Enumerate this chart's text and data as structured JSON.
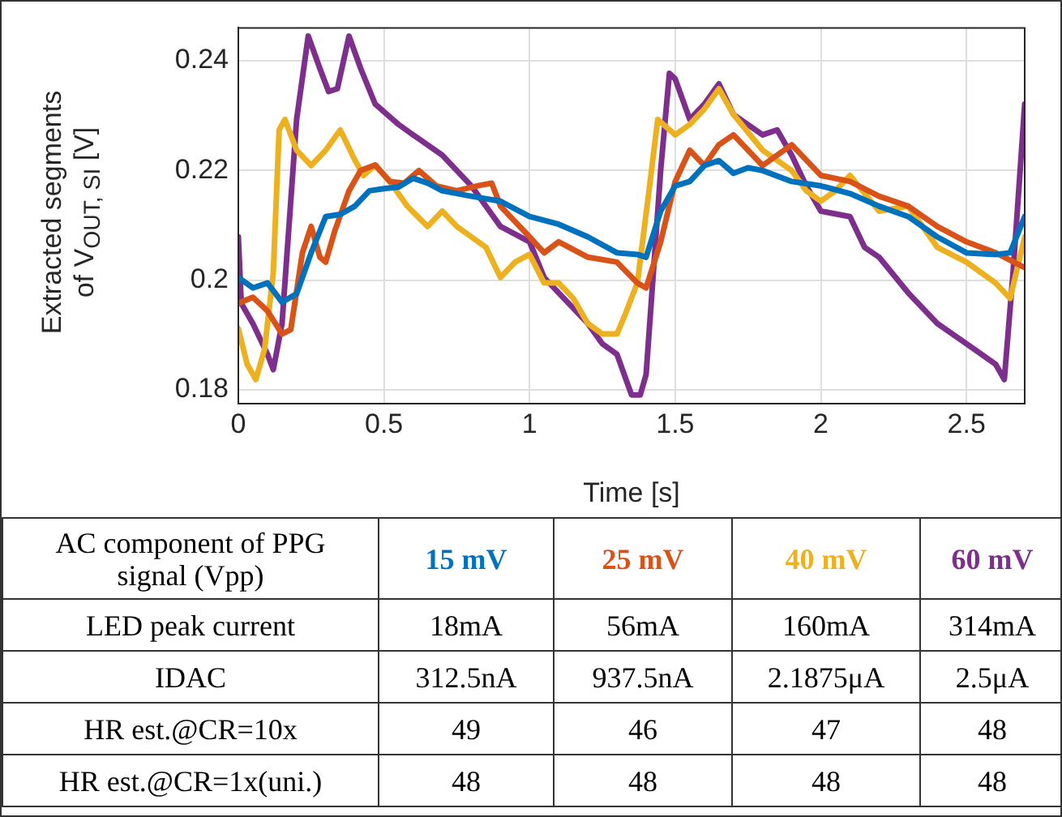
{
  "chart_data": {
    "type": "line",
    "xlabel": "Time [s]",
    "ylabel": "Extracted segments of V$_{OUT, SI}$ [V]",
    "xlim": [
      0,
      2.7
    ],
    "ylim": [
      0.1775,
      0.246
    ],
    "xticks": [
      0,
      0.5,
      1,
      1.5,
      2,
      2.5
    ],
    "yticks": [
      {
        "value": 0.18,
        "label": "0.18"
      },
      {
        "value": 0.2,
        "label": "0.2"
      },
      {
        "value": 0.22,
        "label": "0.22"
      },
      {
        "value": 0.24,
        "label": "0.24"
      }
    ],
    "grid": true,
    "legend": "bottom",
    "marker": "none",
    "line_style": "solid",
    "series": [
      {
        "name": "15 mV",
        "color": "#0072bd",
        "x": [
          0,
          0.05,
          0.1,
          0.15,
          0.2,
          0.25,
          0.3,
          0.35,
          0.4,
          0.45,
          0.5,
          0.55,
          0.6,
          0.65,
          0.7,
          0.8,
          0.9,
          1.0,
          1.1,
          1.2,
          1.3,
          1.37,
          1.4,
          1.45,
          1.5,
          1.55,
          1.6,
          1.65,
          1.7,
          1.75,
          1.8,
          1.9,
          2.0,
          2.1,
          2.2,
          2.3,
          2.4,
          2.5,
          2.6,
          2.65,
          2.7
        ],
        "values": [
          0.2005,
          0.1986,
          0.1995,
          0.196,
          0.1975,
          0.205,
          0.2116,
          0.212,
          0.2135,
          0.2163,
          0.2167,
          0.217,
          0.2186,
          0.2177,
          0.2163,
          0.2153,
          0.2144,
          0.2116,
          0.2102,
          0.2079,
          0.205,
          0.2047,
          0.2042,
          0.2126,
          0.2172,
          0.218,
          0.2209,
          0.2218,
          0.2195,
          0.2205,
          0.22,
          0.218,
          0.2172,
          0.2158,
          0.2135,
          0.2116,
          0.2079,
          0.205,
          0.2047,
          0.205,
          0.2116
        ]
      },
      {
        "name": "25 mV",
        "color": "#d95319",
        "x": [
          0,
          0.05,
          0.1,
          0.15,
          0.18,
          0.22,
          0.25,
          0.28,
          0.3,
          0.33,
          0.38,
          0.42,
          0.47,
          0.52,
          0.57,
          0.62,
          0.68,
          0.75,
          0.82,
          0.87,
          0.9,
          0.95,
          1.0,
          1.05,
          1.1,
          1.2,
          1.3,
          1.37,
          1.4,
          1.45,
          1.5,
          1.55,
          1.6,
          1.65,
          1.7,
          1.8,
          1.9,
          2.0,
          2.1,
          2.2,
          2.3,
          2.4,
          2.5,
          2.6,
          2.7
        ],
        "values": [
          0.1958,
          0.1969,
          0.1944,
          0.1902,
          0.191,
          0.205,
          0.2098,
          0.2042,
          0.2033,
          0.2088,
          0.2163,
          0.22,
          0.221,
          0.218,
          0.2177,
          0.22,
          0.2172,
          0.2163,
          0.2172,
          0.2177,
          0.2135,
          0.2107,
          0.2079,
          0.205,
          0.207,
          0.2042,
          0.2033,
          0.1995,
          0.1986,
          0.207,
          0.218,
          0.2237,
          0.2209,
          0.2247,
          0.2265,
          0.2209,
          0.2247,
          0.2191,
          0.218,
          0.2153,
          0.2135,
          0.2098,
          0.207,
          0.205,
          0.2023
        ]
      },
      {
        "name": "40 mV",
        "color": "#edb120",
        "x": [
          0,
          0.03,
          0.06,
          0.09,
          0.12,
          0.14,
          0.16,
          0.2,
          0.25,
          0.3,
          0.35,
          0.4,
          0.43,
          0.47,
          0.52,
          0.58,
          0.65,
          0.7,
          0.75,
          0.8,
          0.85,
          0.9,
          0.95,
          1.0,
          1.05,
          1.1,
          1.15,
          1.2,
          1.25,
          1.3,
          1.33,
          1.37,
          1.41,
          1.44,
          1.5,
          1.55,
          1.6,
          1.65,
          1.7,
          1.8,
          1.9,
          1.95,
          2.0,
          2.05,
          2.1,
          2.2,
          2.3,
          2.4,
          2.5,
          2.6,
          2.65,
          2.7
        ],
        "values": [
          0.1912,
          0.1847,
          0.1819,
          0.1874,
          0.2014,
          0.2274,
          0.2293,
          0.2237,
          0.2209,
          0.2237,
          0.2274,
          0.2219,
          0.2191,
          0.221,
          0.218,
          0.2135,
          0.2098,
          0.2126,
          0.2098,
          0.2079,
          0.206,
          0.2005,
          0.2033,
          0.2047,
          0.1995,
          0.1995,
          0.1967,
          0.1921,
          0.1902,
          0.1902,
          0.194,
          0.1995,
          0.2163,
          0.2293,
          0.2265,
          0.2284,
          0.2312,
          0.2349,
          0.2302,
          0.2237,
          0.22,
          0.2163,
          0.2144,
          0.2163,
          0.2191,
          0.2126,
          0.2135,
          0.206,
          0.2033,
          0.1995,
          0.1967,
          0.2079
        ]
      },
      {
        "name": "60 mV",
        "color": "#7e2f8e",
        "x": [
          0,
          0.01,
          0.05,
          0.1,
          0.12,
          0.15,
          0.2,
          0.24,
          0.28,
          0.31,
          0.34,
          0.38,
          0.42,
          0.47,
          0.55,
          0.6,
          0.7,
          0.8,
          0.9,
          1.0,
          1.05,
          1.1,
          1.2,
          1.25,
          1.3,
          1.35,
          1.38,
          1.4,
          1.45,
          1.48,
          1.5,
          1.55,
          1.6,
          1.65,
          1.7,
          1.8,
          1.85,
          1.9,
          1.95,
          2.0,
          2.1,
          2.15,
          2.2,
          2.3,
          2.4,
          2.5,
          2.6,
          2.63,
          2.66,
          2.7
        ],
        "values": [
          0.2079,
          0.1958,
          0.1921,
          0.1865,
          0.1837,
          0.1921,
          0.2293,
          0.2445,
          0.2386,
          0.2344,
          0.2349,
          0.2445,
          0.2386,
          0.2321,
          0.2284,
          0.2265,
          0.2228,
          0.2172,
          0.2098,
          0.207,
          0.2005,
          0.1977,
          0.1921,
          0.1884,
          0.1865,
          0.1791,
          0.1791,
          0.1828,
          0.22,
          0.2377,
          0.2367,
          0.2293,
          0.2321,
          0.2358,
          0.2302,
          0.2265,
          0.2274,
          0.2228,
          0.2172,
          0.2126,
          0.2116,
          0.206,
          0.2042,
          0.1977,
          0.1921,
          0.1884,
          0.1847,
          0.1819,
          0.2014,
          0.2321
        ]
      }
    ],
    "annotations": [
      "AC component of PPG signal (Vpp)",
      "LED peak current",
      "18mA",
      "56mA",
      "160mA",
      "314mA",
      "IDAC",
      "312.5nA",
      "937.5nA",
      "2.1875μA",
      "2.5μA",
      "HR est.@CR=10x",
      "49",
      "46",
      "47",
      "48",
      "HR est.@CR=1x(uni.)",
      "48",
      "48",
      "48",
      "48"
    ]
  }
}
